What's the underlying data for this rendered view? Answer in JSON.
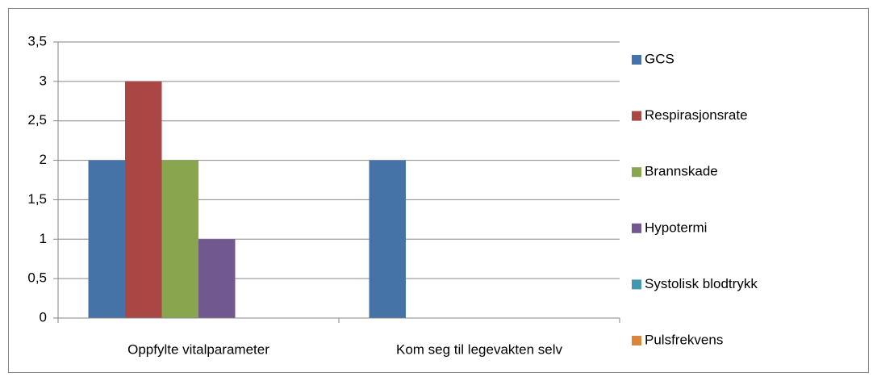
{
  "chart_data": {
    "type": "bar",
    "categories": [
      "Oppfylte vitalparameter",
      "Kom seg til legevakten selv"
    ],
    "series": [
      {
        "name": "GCS",
        "color": "#4572a7",
        "values": [
          2,
          2
        ]
      },
      {
        "name": "Respirasjonsrate",
        "color": "#aa4643",
        "values": [
          3,
          0
        ]
      },
      {
        "name": "Brannskade",
        "color": "#89a54e",
        "values": [
          2,
          0
        ]
      },
      {
        "name": "Hypotermi",
        "color": "#71588f",
        "values": [
          1,
          0
        ]
      },
      {
        "name": "Systolisk blodtrykk",
        "color": "#4198af",
        "values": [
          0,
          0
        ]
      },
      {
        "name": "Pulsfrekvens",
        "color": "#db843d",
        "values": [
          0,
          0
        ]
      }
    ],
    "ylim": [
      0,
      3.5
    ],
    "yticks": [
      0,
      {
        "value": 0.5,
        "label": "0,5"
      },
      1,
      {
        "value": 1.5,
        "label": "1,5"
      },
      2,
      {
        "value": 2.5,
        "label": "2,5"
      },
      3,
      {
        "value": 3.5,
        "label": "3,5"
      }
    ],
    "grid": true,
    "legend": "right"
  }
}
